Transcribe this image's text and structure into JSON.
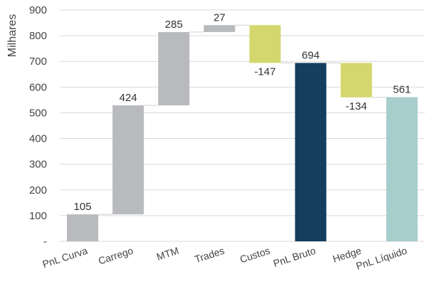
{
  "chart_data": {
    "type": "bar",
    "subtype": "waterfall",
    "title": "",
    "xlabel": "",
    "ylabel": "Milhares",
    "ylim": [
      0,
      900
    ],
    "yticks": [
      {
        "value": 0,
        "label": "-"
      },
      {
        "value": 100,
        "label": "100"
      },
      {
        "value": 200,
        "label": "200"
      },
      {
        "value": 300,
        "label": "300"
      },
      {
        "value": 400,
        "label": "400"
      },
      {
        "value": 500,
        "label": "500"
      },
      {
        "value": 600,
        "label": "600"
      },
      {
        "value": 700,
        "label": "700"
      },
      {
        "value": 800,
        "label": "800"
      },
      {
        "value": 900,
        "label": "900"
      }
    ],
    "grid": true,
    "categories": [
      "PnL Curva",
      "Carrego",
      "MTM",
      "Trades",
      "Custos",
      "PnL Bruto",
      "Hedge",
      "PnL Líquido"
    ],
    "bars": [
      {
        "category": "PnL Curva",
        "kind": "increase",
        "start": 0,
        "end": 105,
        "label": "105",
        "color": "#b9babd"
      },
      {
        "category": "Carrego",
        "kind": "increase",
        "start": 105,
        "end": 529,
        "label": "424",
        "color": "#b9babd"
      },
      {
        "category": "MTM",
        "kind": "increase",
        "start": 529,
        "end": 814,
        "label": "285",
        "color": "#b9babd"
      },
      {
        "category": "Trades",
        "kind": "increase",
        "start": 814,
        "end": 841,
        "label": "27",
        "color": "#b9babd"
      },
      {
        "category": "Custos",
        "kind": "decrease",
        "start": 841,
        "end": 694,
        "label": "-147",
        "color": "#d4d76e"
      },
      {
        "category": "PnL Bruto",
        "kind": "total",
        "start": 0,
        "end": 694,
        "label": "694",
        "color": "#143d5e"
      },
      {
        "category": "Hedge",
        "kind": "decrease",
        "start": 694,
        "end": 560,
        "label": "-134",
        "color": "#d4d76e"
      },
      {
        "category": "PnL Líquido",
        "kind": "total",
        "start": 0,
        "end": 561,
        "label": "561",
        "color": "#a7cdcc"
      }
    ]
  }
}
